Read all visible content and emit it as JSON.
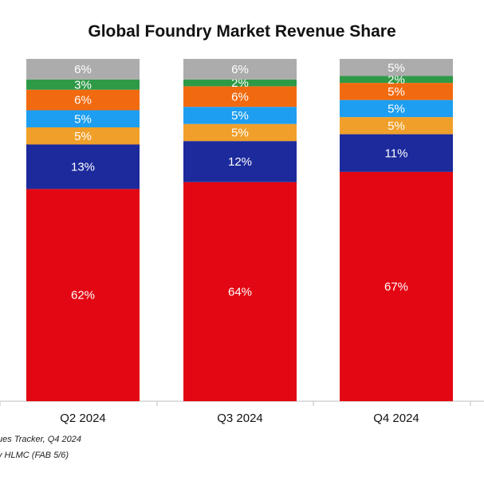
{
  "chart_data": {
    "type": "bar",
    "stacked": true,
    "title": "Global Foundry Market Revenue Share",
    "categories": [
      "Q2 2024",
      "Q3 2024",
      "Q4 2024"
    ],
    "series": [
      {
        "color": "#e30613",
        "values": [
          62,
          64,
          67
        ],
        "labels": [
          "62%",
          "64%",
          "67%"
        ]
      },
      {
        "color": "#1c2a9c",
        "values": [
          13,
          12,
          11
        ],
        "labels": [
          "13%",
          "12%",
          "11%"
        ]
      },
      {
        "color": "#f0a02a",
        "values": [
          5,
          5,
          5
        ],
        "labels": [
          "5%",
          "5%",
          "5%"
        ]
      },
      {
        "color": "#1e9ef0",
        "values": [
          5,
          5,
          5
        ],
        "labels": [
          "5%",
          "5%",
          "5%"
        ]
      },
      {
        "color": "#f26a10",
        "values": [
          6,
          6,
          5
        ],
        "labels": [
          "6%",
          "6%",
          "5%"
        ]
      },
      {
        "color": "#2e9a47",
        "values": [
          3,
          2,
          2
        ],
        "labels": [
          "3%",
          "2%",
          "2%"
        ]
      },
      {
        "color": "#acacac",
        "values": [
          6,
          6,
          5
        ],
        "labels": [
          "6%",
          "6%",
          "5%"
        ]
      }
    ],
    "ylim": [
      0,
      100
    ],
    "grid": false,
    "legend": "none",
    "footnotes": [
      "ues Tracker, Q4 2024",
      "y HLMC (FAB 5/6)"
    ]
  }
}
